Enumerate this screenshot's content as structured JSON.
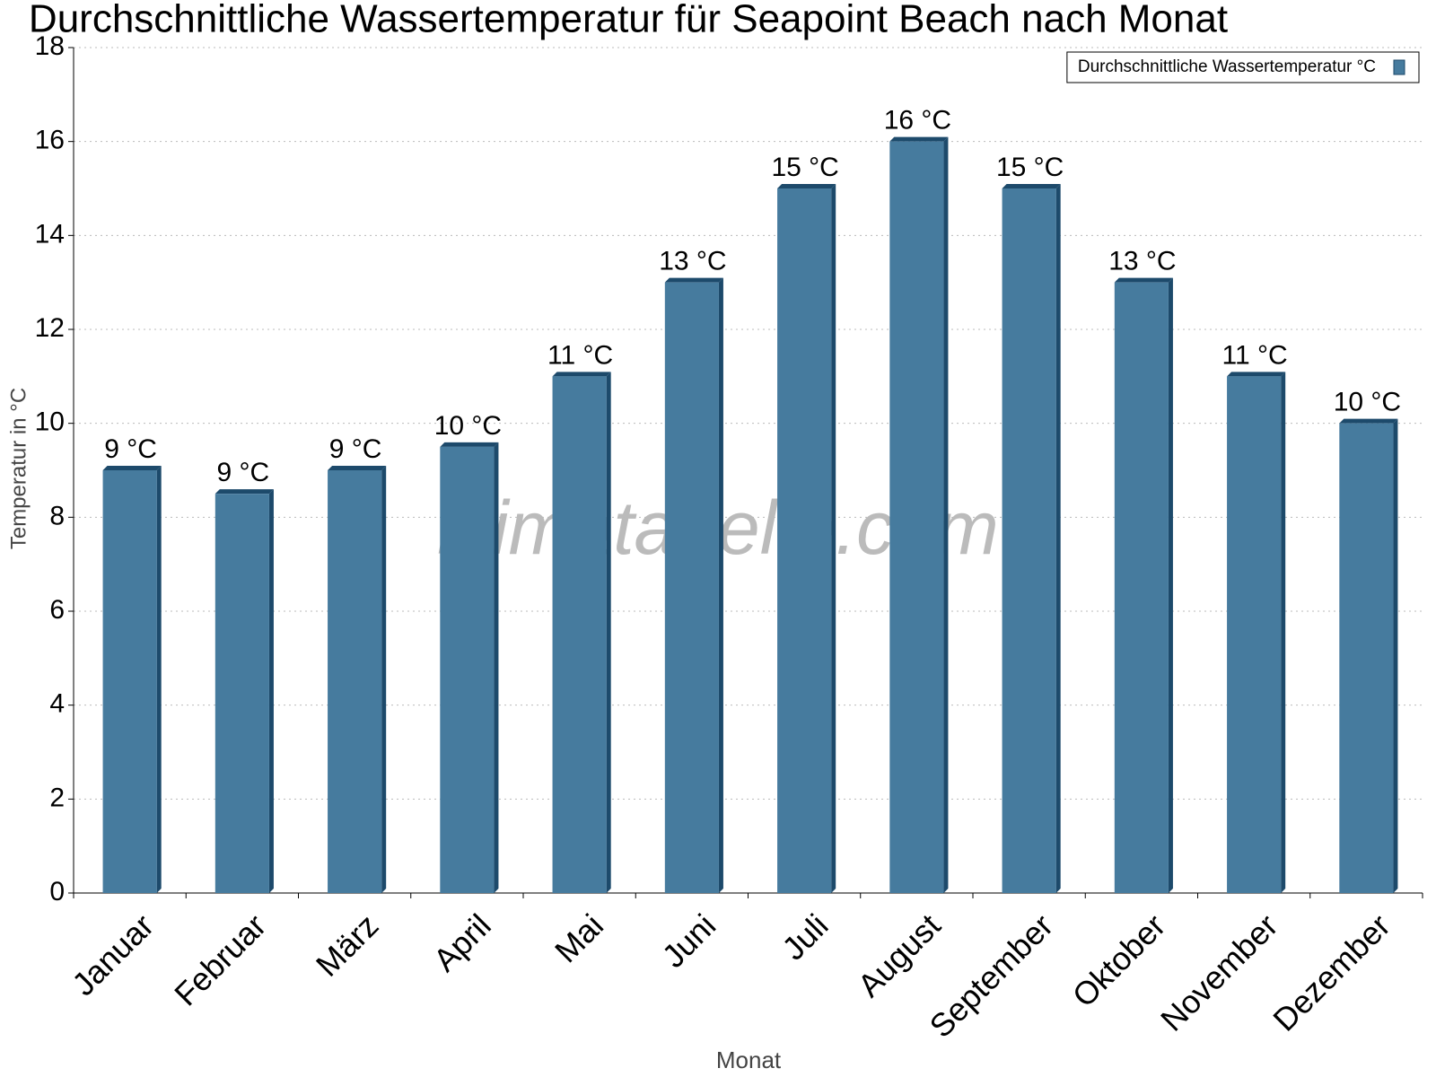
{
  "chart_data": {
    "type": "bar",
    "title": "Durchschnittliche Wassertemperatur für Seapoint Beach nach Monat",
    "x_label": "Monat",
    "y_label": "Temperatur in °C",
    "watermark": "klimatabelle.com",
    "categories": [
      "Januar",
      "Februar",
      "März",
      "April",
      "Mai",
      "Juni",
      "Juli",
      "August",
      "September",
      "Oktober",
      "November",
      "Dezember"
    ],
    "series": [
      {
        "name": "Durchschnittliche Wassertemperatur °C",
        "color": "#467b9e",
        "values": [
          9,
          8.5,
          9,
          9.5,
          11,
          13,
          15,
          16,
          15,
          13,
          11,
          10
        ],
        "value_labels": [
          "9 °C",
          "9 °C",
          "9 °C",
          "10 °C",
          "11 °C",
          "13 °C",
          "15 °C",
          "16 °C",
          "15 °C",
          "13 °C",
          "11 °C",
          "10 °C"
        ]
      }
    ],
    "ylim": [
      0,
      18
    ],
    "yticks": [
      0,
      2,
      4,
      6,
      8,
      10,
      12,
      14,
      16,
      18
    ],
    "grid": true,
    "legend": "top-right"
  }
}
